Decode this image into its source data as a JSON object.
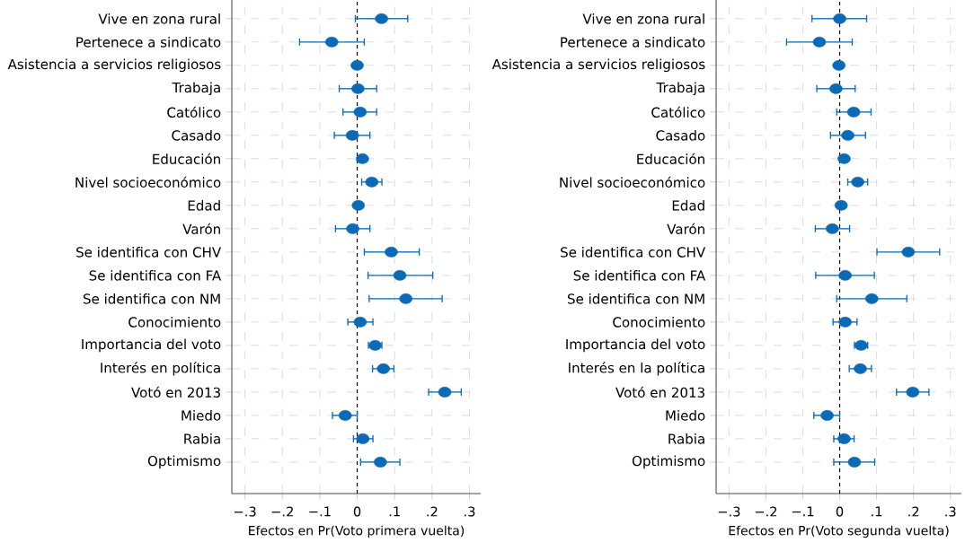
{
  "chart_data": [
    {
      "type": "scatter",
      "orientation": "horizontal",
      "marker": "circle",
      "grid": true,
      "color": "#0a6ab6",
      "xlabel": "Efectos en Pr(Voto primera vuelta)",
      "categories": [
        "Vive en zona rural",
        "Pertenece a sindicato",
        "Asistencia a servicios religiosos",
        "Trabaja",
        "Católico",
        "Casado",
        "Educación",
        "Nivel socioeconómico",
        "Edad",
        "Varón",
        "Se identifica con CHV",
        "Se identifica con FA",
        "Se identifica con NM",
        "Conocimiento",
        "Importancia del voto",
        "Interés en política",
        "Votó en 2013",
        "Miedo",
        "Rabia",
        "Optimismo"
      ],
      "values": [
        0.065,
        -0.068,
        0.0,
        0.002,
        0.008,
        -0.013,
        0.014,
        0.039,
        0.003,
        -0.012,
        0.091,
        0.114,
        0.13,
        0.008,
        0.048,
        0.07,
        0.234,
        -0.032,
        0.015,
        0.062
      ],
      "errors": [
        [
          -0.005,
          0.135
        ],
        [
          -0.154,
          0.019
        ],
        null,
        [
          -0.048,
          0.052
        ],
        [
          -0.038,
          0.052
        ],
        [
          -0.061,
          0.034
        ],
        null,
        [
          0.012,
          0.066
        ],
        null,
        [
          -0.058,
          0.034
        ],
        [
          0.019,
          0.166
        ],
        [
          0.029,
          0.202
        ],
        [
          0.032,
          0.227
        ],
        [
          -0.025,
          0.042
        ],
        [
          0.03,
          0.066
        ],
        [
          0.041,
          0.098
        ],
        [
          0.191,
          0.278
        ],
        [
          -0.066,
          0.0
        ],
        [
          -0.01,
          0.042
        ],
        [
          0.009,
          0.114
        ]
      ],
      "xlim": [
        -0.335,
        0.33
      ],
      "xticks": [
        {
          "value": -0.3,
          "label": "−.3"
        },
        {
          "value": -0.2,
          "label": "−.2"
        },
        {
          "value": -0.1,
          "label": "−.1"
        },
        0,
        {
          "value": 0.1,
          "label": ".1"
        },
        {
          "value": 0.2,
          "label": ".2"
        },
        {
          "value": 0.3,
          "label": ".3"
        }
      ],
      "ref_lines": [
        {
          "axis": "x",
          "value": 0,
          "color": "#000000",
          "line_style": "dashed"
        }
      ]
    },
    {
      "type": "scatter",
      "orientation": "horizontal",
      "marker": "circle",
      "grid": true,
      "color": "#0a6ab6",
      "xlabel": "Efectos en Pr(Voto segunda vuelta)",
      "categories": [
        "Vive en zona rural",
        "Pertenece a sindicato",
        "Asistencia a servicios religiosos",
        "Trabaja",
        "Católico",
        "Casado",
        "Educación",
        "Nivel socioeconómico",
        "Edad",
        "Varón",
        "Se identifica con CHV",
        "Se identifica con FA",
        "Se identifica con NM",
        "Conocimiento",
        "Importancia del voto",
        "Interés en la política",
        "Votó en 2013",
        "Miedo",
        "Rabia",
        "Optimismo"
      ],
      "values": [
        0.0,
        -0.055,
        -0.002,
        -0.01,
        0.038,
        0.022,
        0.012,
        0.049,
        0.004,
        -0.02,
        0.186,
        0.015,
        0.087,
        0.015,
        0.058,
        0.056,
        0.198,
        -0.034,
        0.012,
        0.04
      ],
      "errors": [
        [
          -0.075,
          0.073
        ],
        [
          -0.144,
          0.034
        ],
        null,
        [
          -0.062,
          0.042
        ],
        [
          -0.008,
          0.085
        ],
        [
          -0.025,
          0.07
        ],
        null,
        [
          0.022,
          0.076
        ],
        null,
        [
          -0.066,
          0.027
        ],
        [
          0.101,
          0.271
        ],
        [
          -0.065,
          0.094
        ],
        [
          -0.008,
          0.182
        ],
        [
          -0.018,
          0.047
        ],
        [
          0.04,
          0.076
        ],
        [
          0.026,
          0.086
        ],
        [
          0.154,
          0.242
        ],
        [
          -0.07,
          0.0
        ],
        [
          -0.016,
          0.039
        ],
        [
          -0.016,
          0.095
        ]
      ],
      "xlim": [
        -0.335,
        0.33
      ],
      "xticks": [
        {
          "value": -0.3,
          "label": "−.3"
        },
        {
          "value": -0.2,
          "label": "−.2"
        },
        {
          "value": -0.1,
          "label": "−.1"
        },
        0,
        {
          "value": 0.1,
          "label": ".1"
        },
        {
          "value": 0.2,
          "label": ".2"
        },
        {
          "value": 0.3,
          "label": ".3"
        }
      ],
      "ref_lines": [
        {
          "axis": "x",
          "value": 0,
          "color": "#000000",
          "line_style": "dashed"
        }
      ]
    }
  ]
}
